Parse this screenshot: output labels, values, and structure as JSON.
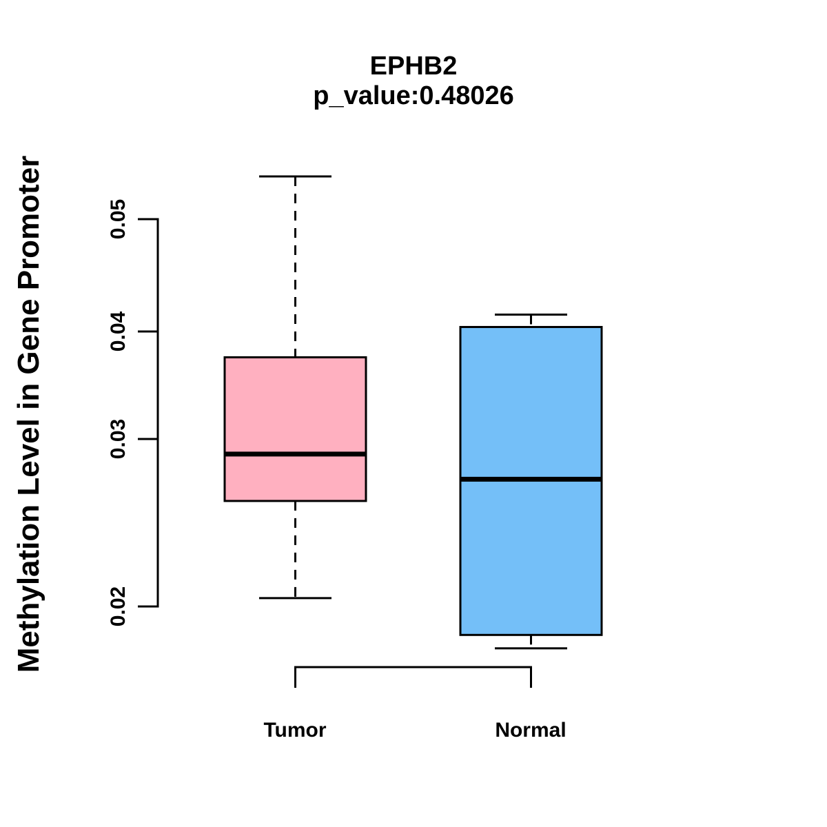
{
  "figure": {
    "title": "EPHB2",
    "subtitle": "p_value:0.48026",
    "ylabel": "Methylation Level in Gene Promoter",
    "xtick_labels": [
      "Tumor",
      "Normal"
    ],
    "ytick_labels": [
      "0.05",
      "0.04",
      "0.03",
      "0.02"
    ]
  },
  "colors": {
    "tumor_fill": "#FFB0C0",
    "normal_fill": "#74BFF8",
    "line": "#000000",
    "background": "#FFFFFF"
  },
  "chart_data": {
    "type": "boxplot",
    "title": "EPHB2",
    "subtitle": "p_value:0.48026",
    "xlabel": "",
    "ylabel": "Methylation Level in Gene Promoter",
    "categories": [
      "Tumor",
      "Normal"
    ],
    "ytick_values": [
      0.05,
      0.04,
      0.03,
      0.02
    ],
    "ylim": [
      0.017,
      0.055
    ],
    "grid": false,
    "legend": "none",
    "series": [
      {
        "name": "Tumor",
        "color": "#FFB0C0",
        "lower_whisker": 0.0205,
        "q1": 0.0263,
        "median": 0.0291,
        "q3": 0.0376,
        "upper_whisker": 0.0538,
        "whisker_style": "dashed"
      },
      {
        "name": "Normal",
        "color": "#74BFF8",
        "lower_whisker": 0.0175,
        "q1": 0.0183,
        "median": 0.0276,
        "q3": 0.0404,
        "upper_whisker": 0.0415,
        "whisker_style": "dashed"
      }
    ]
  }
}
